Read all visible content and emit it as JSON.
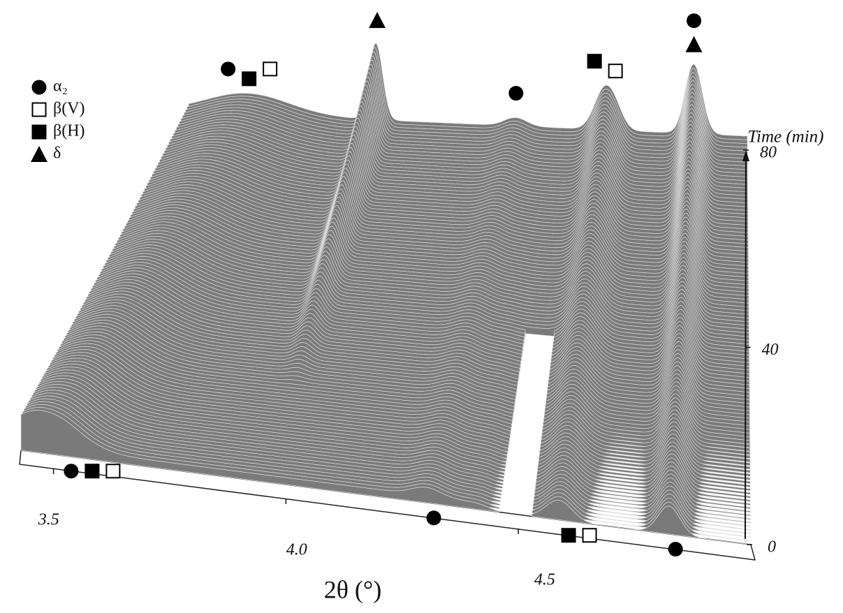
{
  "chart_data": {
    "type": "waterfall3d",
    "xlabel": "2θ (°)",
    "ylabel": "Time (min)",
    "xlim": [
      3.43,
      5.0
    ],
    "xticks": [
      3.5,
      {
        "value": 4,
        "label": "4.0"
      },
      4.5
    ],
    "ylim": [
      0,
      80
    ],
    "yticks": [
      0,
      40,
      80
    ],
    "legend": [
      {
        "symbol": "circle",
        "label": "α₂"
      },
      {
        "symbol": "open-square",
        "label": "β(V)"
      },
      {
        "symbol": "filled-square",
        "label": "β(H)"
      },
      {
        "symbol": "triangle",
        "label": "δ"
      }
    ],
    "markers": [
      {
        "position": 3.52,
        "time": 0,
        "symbols": [
          "circle",
          "filled-square",
          "open-square"
        ]
      },
      {
        "position": 4.3,
        "time": 0,
        "symbols": [
          "circle"
        ]
      },
      {
        "position": 4.59,
        "time": 0,
        "symbols": [
          "filled-square",
          "open-square"
        ]
      },
      {
        "position": 4.82,
        "time": 0,
        "symbols": [
          "circle"
        ]
      },
      {
        "position": 3.6,
        "time": 80,
        "symbols": [
          "circle",
          "filled-square",
          "open-square"
        ]
      },
      {
        "position": 3.96,
        "time": 80,
        "symbols": [
          "triangle"
        ]
      },
      {
        "position": 4.35,
        "time": 80,
        "symbols": [
          "circle"
        ]
      },
      {
        "position": 4.6,
        "time": 80,
        "symbols": [
          "filled-square",
          "open-square"
        ]
      },
      {
        "position": 4.85,
        "time": 80,
        "symbols": [
          "circle",
          "triangle"
        ]
      }
    ]
  }
}
